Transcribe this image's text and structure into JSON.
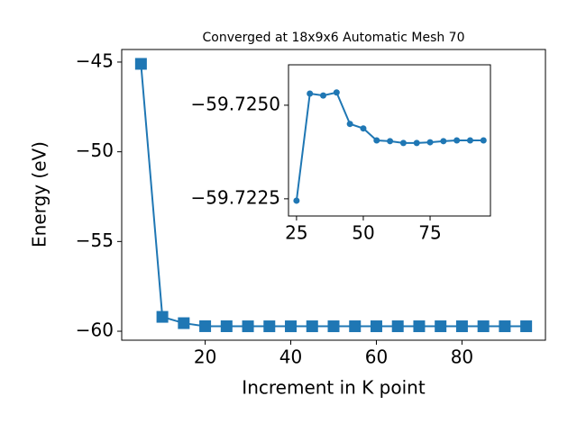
{
  "chart_data": [
    {
      "type": "line",
      "title": "Converged at 18x9x6 Automatic Mesh 70",
      "xlabel": "Increment in K point",
      "ylabel": "Energy (eV)",
      "color": "#1f77b4",
      "marker": "square",
      "x": [
        5,
        10,
        15,
        20,
        25,
        30,
        35,
        40,
        45,
        50,
        55,
        60,
        65,
        70,
        75,
        80,
        85,
        90,
        95
      ],
      "values": [
        -45.1,
        -59.2,
        -59.55,
        -59.72,
        -59.72245,
        -59.72531,
        -59.72526,
        -59.72534,
        -59.7245,
        -59.72438,
        -59.72406,
        -59.72404,
        -59.72399,
        -59.72399,
        -59.72401,
        -59.72404,
        -59.72406,
        -59.72406,
        -59.72406
      ],
      "xlim": [
        0.5,
        99.5
      ],
      "ylim": [
        -60.5,
        -44.3
      ],
      "xticks": [
        20,
        40,
        60,
        80
      ],
      "yticks": [
        {
          "value": -45,
          "label": "−45"
        },
        {
          "value": -50,
          "label": "−50"
        },
        {
          "value": -55,
          "label": "−55"
        },
        {
          "value": -60,
          "label": "−60"
        }
      ]
    },
    {
      "type": "line",
      "color": "#1f77b4",
      "marker": "circle",
      "x": [
        25,
        30,
        35,
        40,
        45,
        50,
        55,
        60,
        65,
        70,
        75,
        80,
        85,
        90,
        95
      ],
      "values": [
        -59.72245,
        -59.72531,
        -59.72526,
        -59.72534,
        -59.7245,
        -59.72438,
        -59.72406,
        -59.72404,
        -59.72399,
        -59.72399,
        -59.72401,
        -59.72404,
        -59.72406,
        -59.72406,
        -59.72406
      ],
      "xlim": [
        22,
        97.6
      ],
      "ylim": [
        -59.72204,
        -59.72608
      ],
      "xticks": [
        25,
        50,
        75
      ],
      "yticks": [
        {
          "value": -59.725,
          "label": "−59.7250"
        },
        {
          "value": -59.7225,
          "label": "−59.7225"
        }
      ]
    }
  ]
}
